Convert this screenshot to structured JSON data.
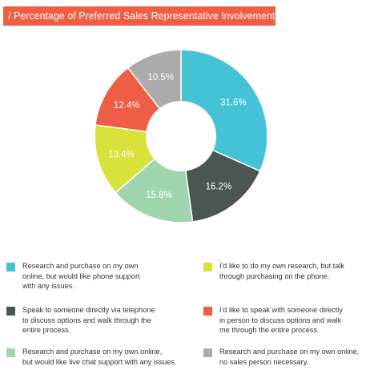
{
  "title": "/ Percentage of Preferred Sales Representative Involvement",
  "chart_data": {
    "type": "pie",
    "title": "/ Percentage of Preferred Sales Representative Involvement",
    "donut": true,
    "categories": [
      "Research and purchase on my own online, but would like phone support with any issues.",
      "Speak to someone directly via telephone to discuss options and walk through the entire process.",
      "Research and purchase on my own online, but would like live chat support with any issues.",
      "I'd like to do my own research, but talk through purchasing on the phone.",
      "I'd like to speak with someone directly in person to discuss options and walk me through the entire process.",
      "Research and purchase on my own online, no sales person necessary."
    ],
    "values": [
      31.6,
      16.2,
      15.8,
      13.4,
      12.4,
      10.5
    ],
    "labels": [
      "31.6%",
      "16.2%",
      "15.8%",
      "13.4%",
      "12.4%",
      "10.5%"
    ],
    "colors": [
      "#45c3d6",
      "#4b5651",
      "#9fd6ad",
      "#d9e23a",
      "#ef5d45",
      "#acabab"
    ],
    "legend_position": "bottom"
  },
  "legend": [
    {
      "lines": [
        "Research and purchase on my own",
        "online, but would like phone support",
        "with any issues."
      ]
    },
    {
      "lines": [
        "Speak to someone directly via telephone",
        "to discuss options and walk through the",
        "entire process."
      ]
    },
    {
      "lines": [
        "Research and purchase on my own online,",
        "but would like live chat support with any issues."
      ]
    },
    {
      "lines": [
        "I'd like to do my own research, but talk",
        "through purchasing on the phone."
      ]
    },
    {
      "lines": [
        "I'd like to speak with someone directly",
        "in person to discuss options and walk",
        "me through the entire process."
      ]
    },
    {
      "lines": [
        "Research and purchase on my own online,",
        "no sales person necessary."
      ]
    }
  ]
}
